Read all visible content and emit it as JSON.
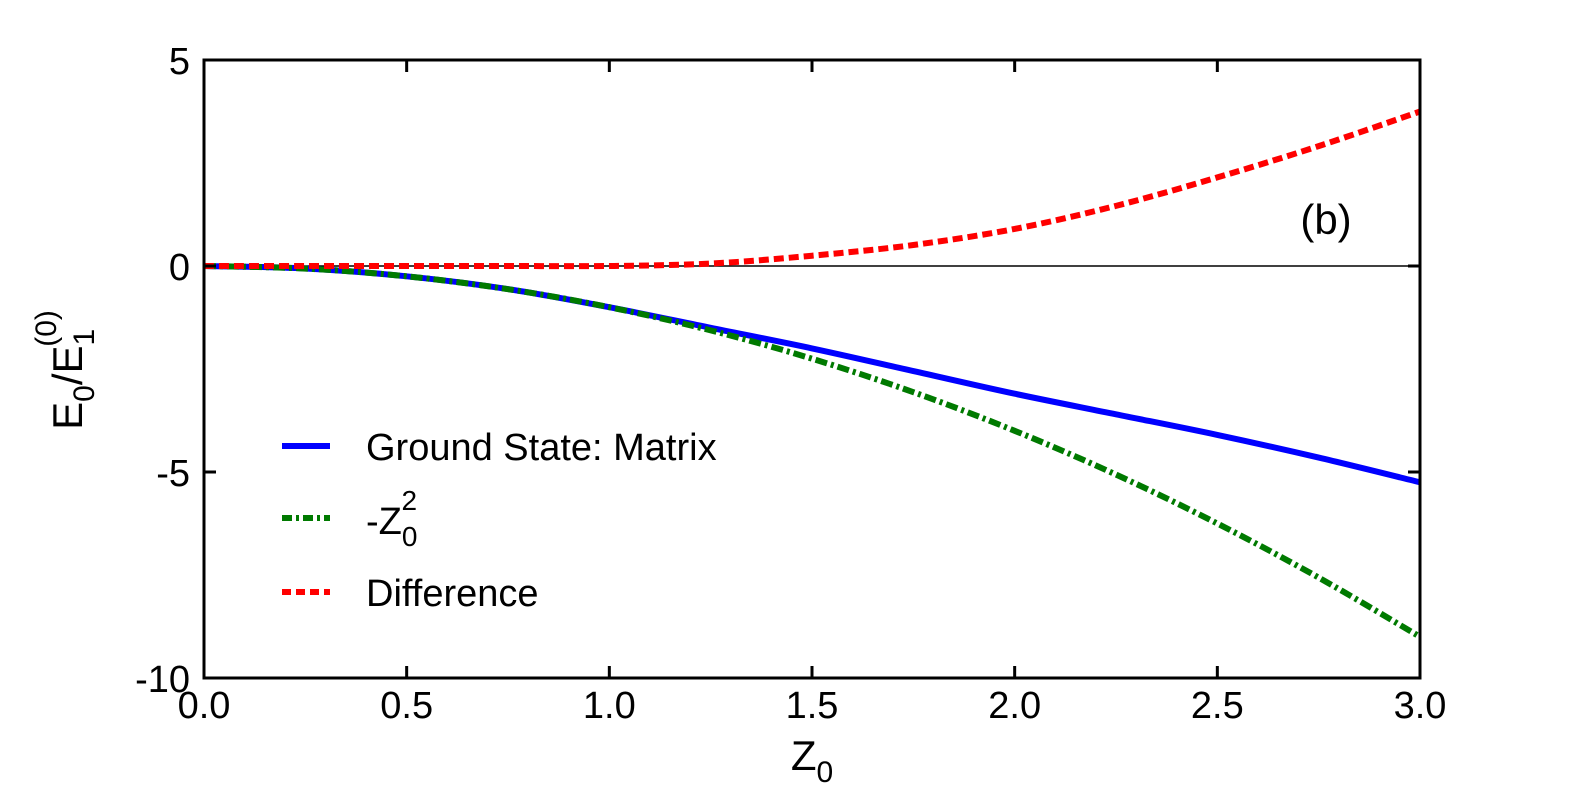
{
  "chart_data": {
    "type": "line",
    "panel_label": "(b)",
    "xlabel": {
      "base": "Z",
      "sub": "0"
    },
    "ylabel": {
      "e": "E",
      "sub0": "0",
      "slash": "/",
      "e1": "E",
      "sub1": "1",
      "sup": "(0)"
    },
    "xlim": [
      0,
      3
    ],
    "ylim": [
      -10,
      5
    ],
    "x_ticks": [
      0,
      0.5,
      1.0,
      1.5,
      2.0,
      2.5,
      3.0
    ],
    "x_tick_labels": [
      "0.0",
      "0.5",
      "1.0",
      "1.5",
      "2.0",
      "2.5",
      "3.0"
    ],
    "y_ticks": [
      5,
      0,
      -5,
      -10
    ],
    "y_tick_labels": [
      "5",
      "0",
      "-5",
      "-10"
    ],
    "zero_line": true,
    "legend_position": "lower-left",
    "x": [
      0,
      0.25,
      0.5,
      0.75,
      1.0,
      1.25,
      1.5,
      1.75,
      2.0,
      2.25,
      2.5,
      2.75,
      3.0
    ],
    "series": [
      {
        "name": "Ground State: Matrix",
        "color": "#0000ff",
        "style": "solid",
        "values": [
          0,
          -0.06,
          -0.25,
          -0.56,
          -1.0,
          -1.5,
          -2.0,
          -2.55,
          -3.1,
          -3.6,
          -4.1,
          -4.65,
          -5.25
        ]
      },
      {
        "name": "-Z0^2",
        "legend_text": {
          "prefix": "-Z",
          "sub": "0",
          "sup": "2"
        },
        "color": "#007a00",
        "style": "dashdot",
        "values": [
          0,
          -0.0625,
          -0.25,
          -0.5625,
          -1.0,
          -1.5625,
          -2.25,
          -3.0625,
          -4.0,
          -5.0625,
          -6.25,
          -7.5625,
          -9.0
        ]
      },
      {
        "name": "Difference",
        "color": "#ff0000",
        "style": "dashed",
        "values": [
          0,
          0.0,
          0.0,
          0.0,
          0.0,
          0.06,
          0.25,
          0.51,
          0.9,
          1.46,
          2.15,
          2.91,
          3.75
        ]
      }
    ]
  }
}
